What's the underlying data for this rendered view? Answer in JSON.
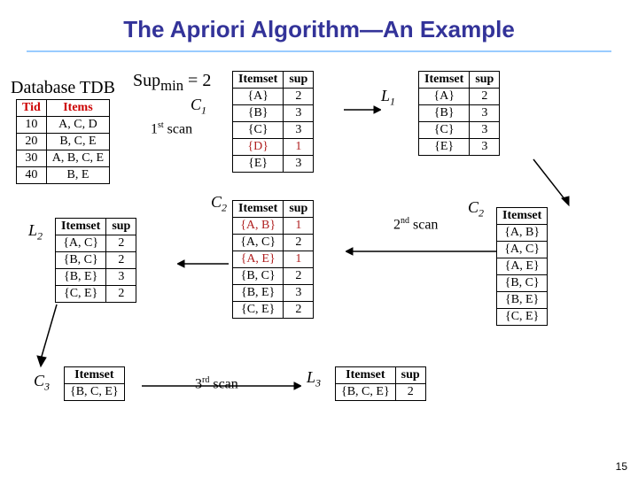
{
  "title": "The Apriori Algorithm—An Example",
  "supmin_label_html": "Sup<sub>min</sub> = 2",
  "db_label": "Database TDB",
  "tdb": {
    "headers": [
      "Tid",
      "Items"
    ],
    "rows": [
      [
        "10",
        "A, C, D"
      ],
      [
        "20",
        "B, C, E"
      ],
      [
        "30",
        "A, B, C, E"
      ],
      [
        "40",
        "B, E"
      ]
    ],
    "header_color": "#cc0000"
  },
  "labels": {
    "C1": "C",
    "C1_sub": "1",
    "L1": "L",
    "L1_sub": "1",
    "C2a": "C",
    "C2a_sub": "2",
    "C2b": "C",
    "C2b_sub": "2",
    "L2": "L",
    "L2_sub": "2",
    "C3": "C",
    "C3_sub": "3",
    "L3": "L",
    "L3_sub": "3"
  },
  "scans": {
    "s1": "1",
    "s1_suf": "st",
    "s1_txt": " scan",
    "s2": "2",
    "s2_suf": "nd",
    "s2_txt": " scan",
    "s3": "3",
    "s3_suf": "rd",
    "s3_txt": " scan"
  },
  "C1": {
    "headers": [
      "Itemset",
      "sup"
    ],
    "rows": [
      [
        "{A}",
        "2"
      ],
      [
        "{B}",
        "3"
      ],
      [
        "{C}",
        "3"
      ],
      [
        "{D}",
        "1"
      ],
      [
        "{E}",
        "3"
      ]
    ],
    "red_row_index": 3
  },
  "L1": {
    "headers": [
      "Itemset",
      "sup"
    ],
    "rows": [
      [
        "{A}",
        "2"
      ],
      [
        "{B}",
        "3"
      ],
      [
        "{C}",
        "3"
      ],
      [
        "{E}",
        "3"
      ]
    ]
  },
  "C2_right": {
    "headers": [
      "Itemset"
    ],
    "rows": [
      [
        "{A, B}"
      ],
      [
        "{A, C}"
      ],
      [
        "{A, E}"
      ],
      [
        "{B, C}"
      ],
      [
        "{B, E}"
      ],
      [
        "{C, E}"
      ]
    ]
  },
  "C2_mid": {
    "headers": [
      "Itemset",
      "sup"
    ],
    "rows": [
      [
        "{A, B}",
        "1"
      ],
      [
        "{A, C}",
        "2"
      ],
      [
        "{A, E}",
        "1"
      ],
      [
        "{B, C}",
        "2"
      ],
      [
        "{B, E}",
        "3"
      ],
      [
        "{C, E}",
        "2"
      ]
    ],
    "red_row_indices": [
      0,
      2
    ]
  },
  "L2": {
    "headers": [
      "Itemset",
      "sup"
    ],
    "rows": [
      [
        "{A, C}",
        "2"
      ],
      [
        "{B, C}",
        "2"
      ],
      [
        "{B, E}",
        "3"
      ],
      [
        "{C, E}",
        "2"
      ]
    ]
  },
  "C3": {
    "headers": [
      "Itemset"
    ],
    "rows": [
      [
        "{B, C, E}"
      ]
    ]
  },
  "L3": {
    "headers": [
      "Itemset",
      "sup"
    ],
    "rows": [
      [
        "{B, C, E}",
        "2"
      ]
    ]
  },
  "page_number": "15",
  "colors": {
    "title": "#333399",
    "underline": "#99ccff",
    "red_pruned": "#b02020",
    "tdb_header": "#cc0000"
  },
  "font_sizes": {
    "title": 26,
    "table": 14,
    "label": 18
  }
}
